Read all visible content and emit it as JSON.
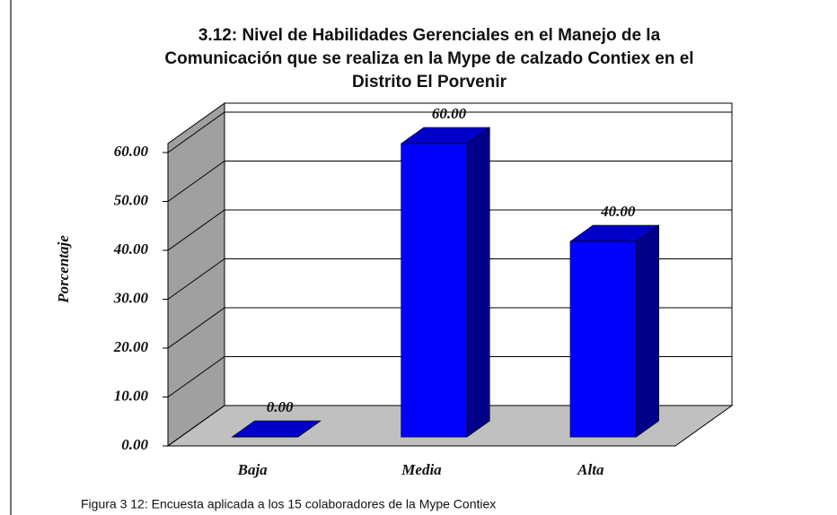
{
  "chart_data": {
    "type": "bar3d",
    "title": [
      "3.12: Nivel de Habilidades Gerenciales en el Manejo de la",
      "Comunicación que se realiza en la Mype de calzado Contiex en el",
      "Distrito El Porvenir"
    ],
    "ylabel": "Porcentaje",
    "categories": [
      "Baja",
      "Media",
      "Alta"
    ],
    "values": [
      0,
      60,
      40
    ],
    "value_labels": [
      "0.00",
      "60.00",
      "40.00"
    ],
    "color": "#0000ff",
    "ylim": [
      0,
      60
    ],
    "yticks": [
      {
        "value": 0,
        "label": "0.00"
      },
      {
        "value": 10,
        "label": "10.00"
      },
      {
        "value": 20,
        "label": "20.00"
      },
      {
        "value": 30,
        "label": "30.00"
      },
      {
        "value": 40,
        "label": "40.00"
      },
      {
        "value": 50,
        "label": "50.00"
      },
      {
        "value": 60,
        "label": "60.00"
      }
    ],
    "grid": true
  },
  "caption": "Figura 3 12: Encuesta aplicada a los 15 colaboradores de la Mype Contiex"
}
